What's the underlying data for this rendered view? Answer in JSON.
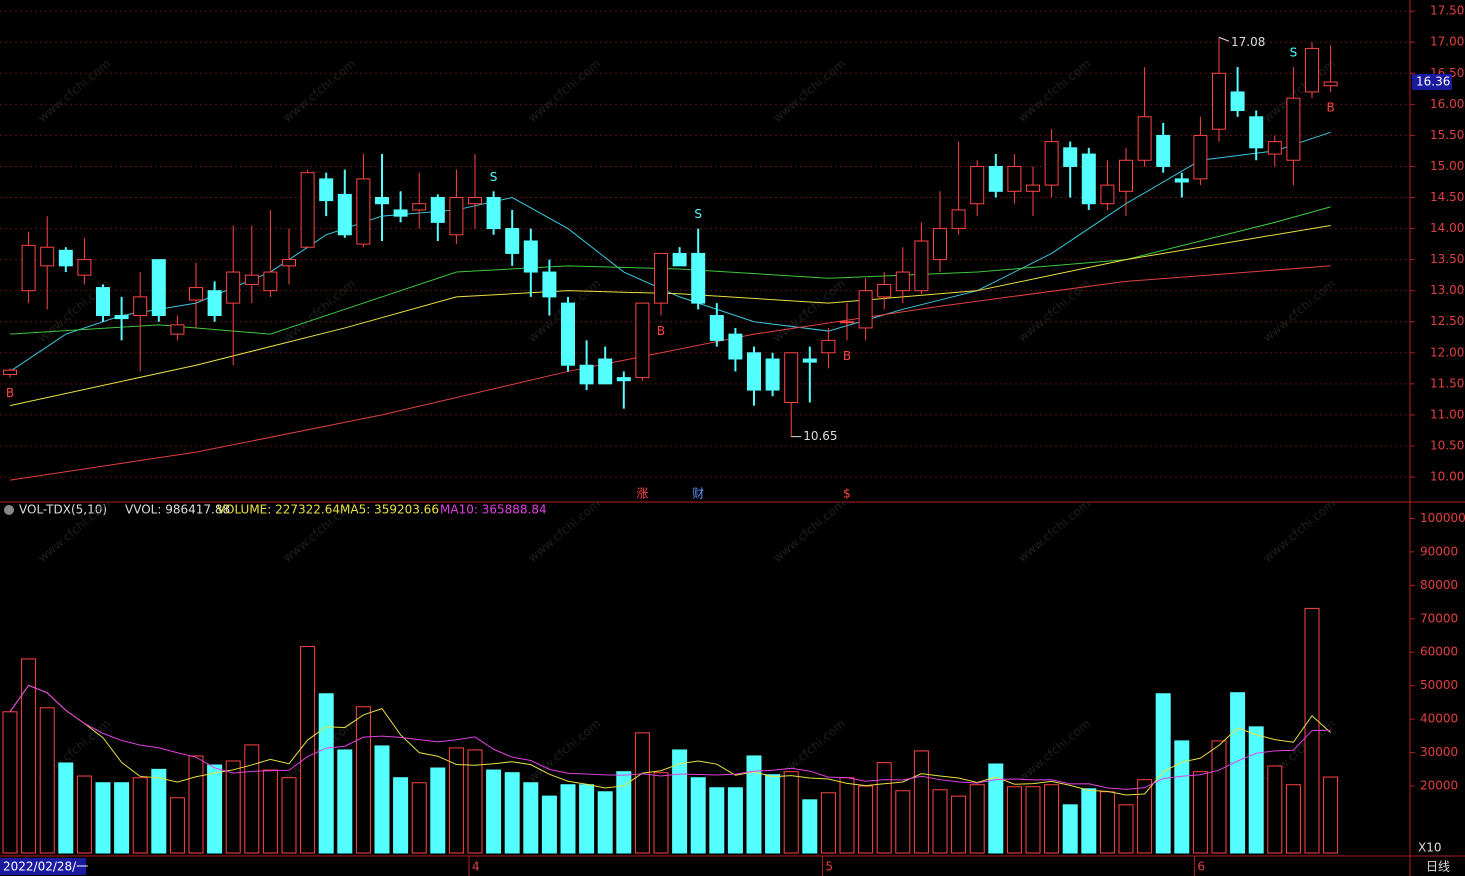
{
  "watermark": "www.cfchi.com",
  "chart_data": [
    {
      "type": "candlestick",
      "up_color": "#ff4444",
      "down_color": "#54ffff",
      "grid": true,
      "ylim": [
        9.63,
        17.68
      ],
      "yticks": [
        {
          "value": 10,
          "label": "10.00"
        },
        {
          "value": 10.5,
          "label": "10.50"
        },
        {
          "value": 11,
          "label": "11.00"
        },
        {
          "value": 11.5,
          "label": "11.50"
        },
        {
          "value": 12,
          "label": "12.00"
        },
        {
          "value": 12.5,
          "label": "12.50"
        },
        {
          "value": 13,
          "label": "13.00"
        },
        {
          "value": 13.5,
          "label": "13.50"
        },
        {
          "value": 14,
          "label": "14.00"
        },
        {
          "value": 14.5,
          "label": "14.50"
        },
        {
          "value": 15,
          "label": "15.00"
        },
        {
          "value": 15.5,
          "label": "15.50"
        },
        {
          "value": 16,
          "label": "16.00"
        },
        {
          "value": 16.5,
          "label": "16.50"
        },
        {
          "value": 17,
          "label": "17.00"
        },
        {
          "value": 17.5,
          "label": "17.50"
        }
      ],
      "categories": [
        "2022/02/28/一",
        null,
        null,
        null,
        null,
        null,
        null,
        null,
        null,
        null,
        null,
        null,
        null,
        null,
        null,
        null,
        null,
        null,
        null,
        null,
        null,
        null,
        null,
        null,
        null,
        "4",
        null,
        null,
        null,
        null,
        null,
        null,
        null,
        null,
        null,
        null,
        null,
        null,
        null,
        null,
        null,
        null,
        null,
        null,
        "5",
        null,
        null,
        null,
        null,
        null,
        null,
        null,
        null,
        null,
        null,
        null,
        null,
        null,
        null,
        null,
        null,
        null,
        null,
        null,
        "6",
        null,
        null,
        null,
        null,
        null,
        null,
        null
      ],
      "ohlc": [
        [
          11.65,
          11.75,
          11.6,
          11.72
        ],
        [
          13.0,
          13.95,
          12.8,
          13.73
        ],
        [
          13.4,
          14.2,
          12.7,
          13.7
        ],
        [
          13.65,
          13.7,
          13.3,
          13.4
        ],
        [
          13.25,
          13.85,
          13.1,
          13.5
        ],
        [
          13.05,
          13.1,
          12.5,
          12.6
        ],
        [
          12.6,
          12.9,
          12.2,
          12.55
        ],
        [
          12.6,
          13.3,
          11.7,
          12.9
        ],
        [
          13.5,
          13.5,
          12.5,
          12.6
        ],
        [
          12.3,
          12.6,
          12.2,
          12.45
        ],
        [
          12.85,
          13.45,
          12.4,
          13.05
        ],
        [
          13.0,
          13.15,
          12.5,
          12.6
        ],
        [
          12.8,
          14.05,
          11.8,
          13.3
        ],
        [
          13.1,
          14.05,
          12.8,
          13.25
        ],
        [
          13.0,
          14.3,
          12.9,
          13.3
        ],
        [
          13.4,
          14.0,
          13.1,
          13.5
        ],
        [
          13.7,
          14.95,
          13.7,
          14.9
        ],
        [
          14.8,
          14.9,
          14.2,
          14.45
        ],
        [
          14.55,
          14.95,
          13.85,
          13.9
        ],
        [
          13.75,
          15.2,
          13.7,
          14.8
        ],
        [
          14.5,
          15.2,
          13.8,
          14.4
        ],
        [
          14.3,
          14.6,
          14.1,
          14.2
        ],
        [
          14.3,
          14.9,
          14.0,
          14.4
        ],
        [
          14.5,
          14.55,
          13.8,
          14.1
        ],
        [
          13.9,
          14.95,
          13.75,
          14.5
        ],
        [
          14.4,
          15.2,
          14.0,
          14.5
        ],
        [
          14.5,
          14.6,
          13.9,
          14.0
        ],
        [
          14.0,
          14.3,
          13.4,
          13.6
        ],
        [
          13.8,
          14.0,
          12.9,
          13.3
        ],
        [
          13.3,
          13.5,
          12.6,
          12.9
        ],
        [
          12.8,
          12.9,
          11.7,
          11.8
        ],
        [
          11.8,
          12.2,
          11.4,
          11.5
        ],
        [
          11.9,
          12.1,
          11.5,
          11.5
        ],
        [
          11.6,
          11.7,
          11.1,
          11.55
        ],
        [
          11.6,
          12.8,
          11.55,
          12.8
        ],
        [
          12.8,
          13.6,
          12.6,
          13.6
        ],
        [
          13.6,
          13.7,
          13.4,
          13.4
        ],
        [
          13.6,
          14.0,
          12.7,
          12.8
        ],
        [
          12.6,
          12.8,
          12.1,
          12.2
        ],
        [
          12.3,
          12.4,
          11.7,
          11.9
        ],
        [
          12.0,
          12.1,
          11.15,
          11.4
        ],
        [
          11.9,
          12.0,
          11.3,
          11.4
        ],
        [
          11.2,
          12.0,
          10.65,
          12.0
        ],
        [
          11.9,
          12.1,
          11.2,
          11.85
        ],
        [
          12.0,
          12.4,
          11.75,
          12.2
        ],
        [
          12.5,
          12.8,
          12.2,
          12.5
        ],
        [
          12.4,
          13.2,
          12.2,
          13.0
        ],
        [
          12.9,
          13.3,
          12.7,
          13.1
        ],
        [
          13.0,
          13.7,
          12.8,
          13.3
        ],
        [
          13.0,
          14.1,
          12.95,
          13.8
        ],
        [
          13.5,
          14.6,
          13.3,
          14.0
        ],
        [
          14.0,
          15.4,
          13.9,
          14.3
        ],
        [
          14.4,
          15.1,
          14.2,
          15.0
        ],
        [
          15.0,
          15.2,
          14.5,
          14.6
        ],
        [
          14.6,
          15.2,
          14.4,
          15.0
        ],
        [
          14.6,
          15.0,
          14.2,
          14.7
        ],
        [
          14.7,
          15.6,
          14.5,
          15.4
        ],
        [
          15.3,
          15.4,
          14.5,
          15.0
        ],
        [
          15.2,
          15.3,
          14.3,
          14.4
        ],
        [
          14.4,
          15.1,
          14.3,
          14.7
        ],
        [
          14.6,
          15.3,
          14.2,
          15.1
        ],
        [
          15.1,
          16.6,
          15.0,
          15.8
        ],
        [
          15.5,
          15.7,
          14.9,
          15.0
        ],
        [
          14.8,
          14.9,
          14.5,
          14.75
        ],
        [
          14.8,
          15.8,
          14.7,
          15.5
        ],
        [
          15.6,
          17.08,
          15.4,
          16.5
        ],
        [
          16.2,
          16.6,
          15.8,
          15.9
        ],
        [
          15.8,
          15.9,
          15.1,
          15.3
        ],
        [
          15.2,
          15.5,
          15.0,
          15.4
        ],
        [
          15.1,
          16.6,
          14.7,
          16.1
        ],
        [
          16.2,
          17.0,
          16.1,
          16.9
        ],
        [
          16.3,
          16.95,
          16.2,
          16.36
        ]
      ],
      "lines": [
        {
          "color": "#3cc8e0",
          "x": [
            0,
            3,
            6,
            10,
            14,
            17,
            20,
            24,
            27,
            30,
            33,
            36,
            40,
            44,
            48,
            52,
            56,
            60,
            64,
            68,
            71
          ],
          "values": [
            11.7,
            12.3,
            12.6,
            12.8,
            13.3,
            13.9,
            14.2,
            14.3,
            14.5,
            14.0,
            13.3,
            12.9,
            12.5,
            12.35,
            12.7,
            13.0,
            13.6,
            14.4,
            15.1,
            15.25,
            15.55
          ]
        },
        {
          "color": "#3ec83e",
          "x": [
            0,
            8,
            14,
            18,
            24,
            30,
            36,
            44,
            52,
            60,
            64,
            68,
            71
          ],
          "values": [
            12.3,
            12.45,
            12.3,
            12.7,
            13.3,
            13.4,
            13.35,
            13.2,
            13.3,
            13.5,
            13.8,
            14.1,
            14.35
          ]
        },
        {
          "color": "#e8e040",
          "x": [
            0,
            10,
            18,
            24,
            30,
            36,
            44,
            52,
            60,
            66,
            71
          ],
          "values": [
            11.15,
            11.8,
            12.4,
            12.9,
            13.0,
            12.95,
            12.8,
            13.0,
            13.5,
            13.8,
            14.05
          ]
        },
        {
          "color": "#e04040",
          "x": [
            0,
            10,
            20,
            30,
            40,
            50,
            60,
            71
          ],
          "values": [
            9.95,
            10.4,
            11.0,
            11.7,
            12.3,
            12.75,
            13.15,
            13.4
          ]
        }
      ],
      "signals": [
        {
          "x": 0,
          "label": "B"
        },
        {
          "x": 26,
          "label": "S"
        },
        {
          "x": 35,
          "label": "B"
        },
        {
          "x": 37,
          "label": "S"
        },
        {
          "x": 45,
          "label": "B"
        },
        {
          "x": 69,
          "label": "S"
        },
        {
          "x": 71,
          "label": "B"
        }
      ],
      "events": [
        {
          "x": 34,
          "label": "涨"
        },
        {
          "x": 37,
          "label": "财"
        },
        {
          "x": 45,
          "label": "$"
        }
      ],
      "high_mark": {
        "x": 65,
        "value": 17.08
      },
      "low_mark": {
        "x": 42,
        "value": 10.65
      },
      "last_price": 16.36
    },
    {
      "type": "bar",
      "title": "VOL-TDX(5,10)",
      "stats": [
        "VVOL: 986417.88",
        "VOLUME: 227322.64",
        "MA5: 359203.66",
        "MA10: 365888.84"
      ],
      "ylim": [
        0,
        104000
      ],
      "yticks": [
        20000,
        30000,
        40000,
        50000,
        60000,
        70000,
        80000,
        90000,
        100000
      ],
      "ma_periods": [
        5,
        10
      ],
      "ma_colors": [
        "#e8e040",
        "#e040e0"
      ],
      "multiplier": "X10",
      "period_label": "日线",
      "values": [
        42200,
        58000,
        43400,
        26900,
        23000,
        21000,
        21000,
        22500,
        25000,
        16500,
        29000,
        26300,
        27500,
        32300,
        24800,
        22500,
        61700,
        47600,
        30800,
        43700,
        32000,
        22500,
        21000,
        25400,
        31400,
        30800,
        24800,
        24000,
        21000,
        17000,
        20400,
        20400,
        18300,
        24300,
        35900,
        24000,
        30800,
        22500,
        19500,
        19500,
        29000,
        23400,
        24300,
        15900,
        18000,
        22500,
        20000,
        27000,
        18600,
        30500,
        18900,
        17000,
        20400,
        26600,
        19800,
        19800,
        20400,
        14400,
        19200,
        18300,
        14400,
        21900,
        47600,
        33500,
        24300,
        33500,
        47900,
        37700,
        26000,
        20400,
        73100,
        22700
      ]
    }
  ]
}
